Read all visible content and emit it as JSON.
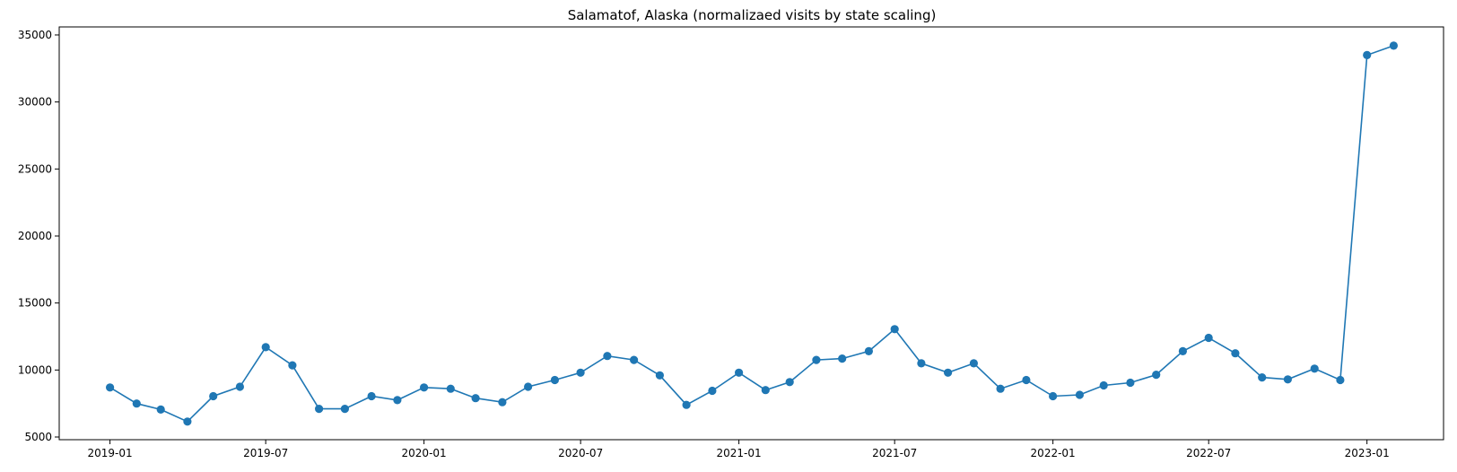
{
  "chart_data": {
    "type": "line",
    "title": "Salamatof, Alaska (normalizaed visits by state scaling)",
    "xlabel": "",
    "ylabel": "",
    "x": [
      "2019-01",
      "2019-02",
      "2019-03",
      "2019-04",
      "2019-05",
      "2019-06",
      "2019-07",
      "2019-08",
      "2019-09",
      "2019-10",
      "2019-11",
      "2019-12",
      "2020-01",
      "2020-02",
      "2020-03",
      "2020-04",
      "2020-05",
      "2020-06",
      "2020-07",
      "2020-08",
      "2020-09",
      "2020-10",
      "2020-11",
      "2020-12",
      "2021-01",
      "2021-02",
      "2021-03",
      "2021-04",
      "2021-05",
      "2021-06",
      "2021-07",
      "2021-08",
      "2021-09",
      "2021-10",
      "2021-11",
      "2021-12",
      "2022-01",
      "2022-02",
      "2022-03",
      "2022-04",
      "2022-05",
      "2022-06",
      "2022-07",
      "2022-08",
      "2022-09",
      "2022-10",
      "2022-11",
      "2022-12",
      "2023-01",
      "2023-02"
    ],
    "series": [
      {
        "color": "#1f77b4",
        "values": [
          8700,
          7500,
          7050,
          6150,
          8050,
          8750,
          11700,
          10350,
          7100,
          7100,
          8050,
          7750,
          8700,
          8600,
          7900,
          7600,
          8750,
          9250,
          9800,
          11050,
          10750,
          9600,
          7400,
          8450,
          9800,
          8500,
          9100,
          10750,
          10850,
          11400,
          13050,
          10500,
          9800,
          10500,
          8600,
          9250,
          8050,
          8150,
          8850,
          9050,
          9650,
          11400,
          12400,
          11250,
          9450,
          9300,
          10100,
          9250,
          33500,
          34200
        ]
      }
    ],
    "x_ticks": [
      "2019-01",
      "2019-07",
      "2020-01",
      "2020-07",
      "2021-01",
      "2021-07",
      "2022-01",
      "2022-07",
      "2023-01"
    ],
    "y_ticks": [
      5000,
      10000,
      15000,
      20000,
      25000,
      30000,
      35000
    ],
    "ylim": [
      4800,
      35600
    ],
    "xlim": [
      "2018-11-03",
      "2023-03-31"
    ],
    "grid": false,
    "legend": "none"
  }
}
